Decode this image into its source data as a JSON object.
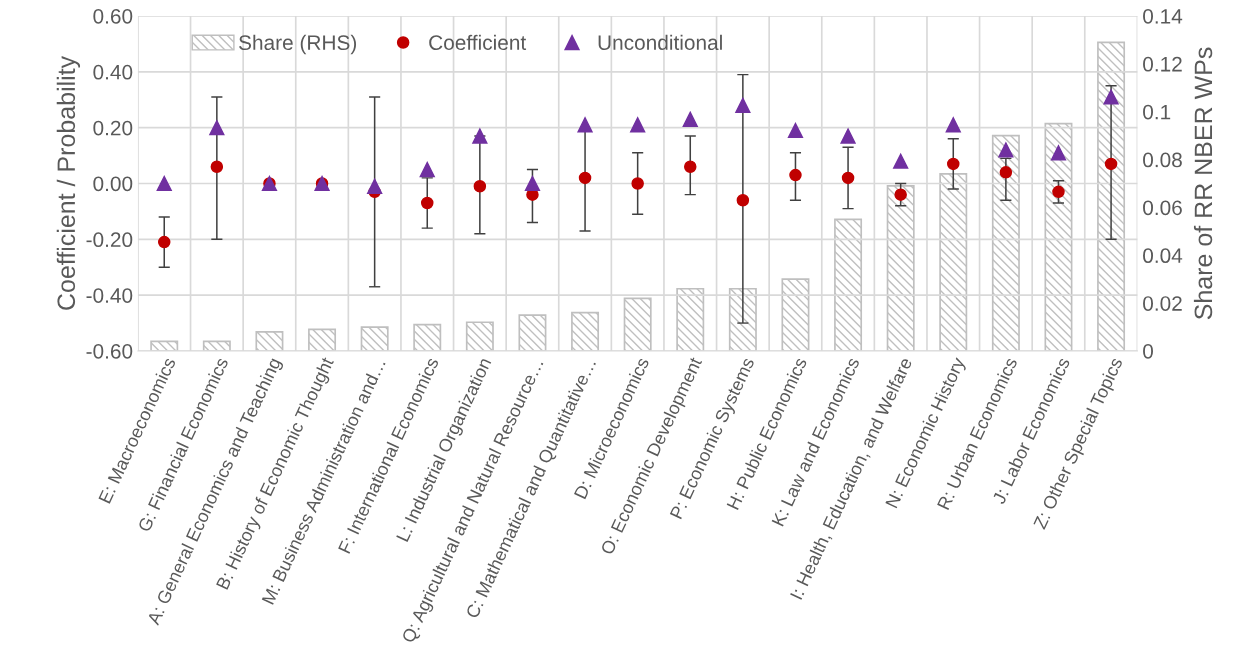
{
  "chart_data": {
    "type": "scatter",
    "ylabel": "Coefficient / Probability",
    "y2label": "Share of RR NBER WPs",
    "categories": [
      "E: Macroeconomics",
      "G: Financial Economics",
      "A: General Economics and Teaching",
      "B: History of Economic Thought",
      "M: Business Administration and…",
      "F: International Economics",
      "L: Industrial Organization",
      "Q: Agricultural and Natural Resource…",
      "C: Mathematical and Quantitative…",
      "D: Microeconomics",
      "O: Economic Development",
      "P: Economic Systems",
      "H: Public Economics",
      "K: Law and Economics",
      "I: Health, Education, and Welfare",
      "N: Economic History",
      "R: Urban Economics",
      "J: Labor Economics",
      "Z: Other Special Topics"
    ],
    "series": [
      {
        "name": "Share (RHS)",
        "type": "bar",
        "axis": "y2",
        "color": "#bfbfbf",
        "values": [
          0.004,
          0.004,
          0.008,
          0.009,
          0.01,
          0.011,
          0.012,
          0.015,
          0.016,
          0.022,
          0.026,
          0.026,
          0.03,
          0.055,
          0.069,
          0.074,
          0.09,
          0.095,
          0.129
        ]
      },
      {
        "name": "Coefficient",
        "marker": "circle",
        "color": "#c00000",
        "values": [
          -0.21,
          0.06,
          0.0,
          0.0,
          -0.03,
          -0.07,
          -0.01,
          -0.04,
          0.02,
          0.0,
          0.06,
          -0.06,
          0.03,
          0.02,
          -0.04,
          0.07,
          0.04,
          -0.03,
          0.07
        ],
        "errors": [
          [
            -0.3,
            -0.12
          ],
          [
            -0.2,
            0.31
          ],
          null,
          null,
          [
            -0.37,
            0.31
          ],
          [
            -0.16,
            0.02
          ],
          [
            -0.18,
            0.17
          ],
          [
            -0.14,
            0.05
          ],
          [
            -0.17,
            0.19
          ],
          [
            -0.11,
            0.11
          ],
          [
            -0.04,
            0.17
          ],
          [
            -0.5,
            0.39
          ],
          [
            -0.06,
            0.11
          ],
          [
            -0.09,
            0.13
          ],
          [
            -0.08,
            0.0
          ],
          [
            -0.02,
            0.16
          ],
          [
            -0.06,
            0.09
          ],
          [
            -0.07,
            0.01
          ],
          [
            -0.2,
            0.35
          ]
        ]
      },
      {
        "name": "Unconditional",
        "marker": "triangle",
        "color": "#7030a0",
        "values": [
          0.0,
          0.2,
          0.0,
          0.0,
          -0.01,
          0.05,
          0.17,
          0.0,
          0.21,
          0.21,
          0.23,
          0.28,
          0.19,
          0.17,
          0.08,
          0.21,
          0.12,
          0.11,
          0.31
        ]
      }
    ],
    "ylim": [
      -0.6,
      0.6
    ],
    "yticks": [
      {
        "value": -0.6,
        "label": "-0.60"
      },
      {
        "value": -0.4,
        "label": "-0.40"
      },
      {
        "value": -0.2,
        "label": "-0.20"
      },
      {
        "value": 0,
        "label": "0.00"
      },
      {
        "value": 0.2,
        "label": "0.20"
      },
      {
        "value": 0.4,
        "label": "0.40"
      },
      {
        "value": 0.6,
        "label": "0.60"
      }
    ],
    "y2lim": [
      0,
      0.14
    ],
    "y2ticks": [
      0,
      0.02,
      0.04,
      0.06,
      0.08,
      0.1,
      0.12,
      0.14
    ],
    "grid": true,
    "legend": "top"
  }
}
